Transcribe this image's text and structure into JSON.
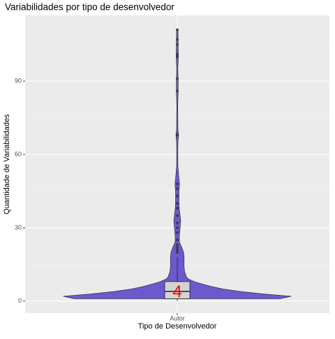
{
  "chart_data": {
    "type": "violin",
    "title": "Variabilidades por tipo de desenvolvedor",
    "x_label": "Tipo de Desenvolvedor",
    "y_label": "Quantidade de Variabilidades",
    "categories": [
      "Autor"
    ],
    "ylim": [
      -4.9,
      116.9
    ],
    "yticks": [
      0,
      30,
      60,
      90
    ],
    "y_minor": [
      15,
      45,
      75,
      105
    ],
    "grid": true,
    "color": "#6a5acd",
    "box_color": "#d3d3d3",
    "violin": {
      "y": [
        1,
        2,
        3,
        4,
        5,
        6,
        7,
        8,
        9,
        10,
        12,
        14,
        16,
        18,
        20,
        22,
        24,
        26,
        30,
        33,
        35,
        38,
        40,
        45,
        48,
        50,
        55,
        60,
        65,
        68,
        70,
        80,
        86,
        90,
        95,
        100,
        105,
        111
      ],
      "width": [
        0.9,
        1,
        0.75,
        0.55,
        0.4,
        0.3,
        0.22,
        0.15,
        0.1,
        0.08,
        0.065,
        0.06,
        0.06,
        0.06,
        0.055,
        0.04,
        0.02,
        0.018,
        0.025,
        0.03,
        0.025,
        0.018,
        0.015,
        0.015,
        0.02,
        0.015,
        0.006,
        0.005,
        0.006,
        0.012,
        0.006,
        0.004,
        0.008,
        0.008,
        0.005,
        0.01,
        0.008,
        0.006
      ]
    },
    "box": {
      "whisker_low": 0,
      "q1": 1,
      "median": 4,
      "q3": 8,
      "whisker_high": 18
    },
    "median_label": "4",
    "outliers": [
      20,
      21,
      22,
      23,
      25,
      28,
      30,
      32,
      35,
      38,
      40,
      43,
      46,
      48,
      68,
      86,
      91,
      100,
      101,
      105,
      107,
      111
    ]
  }
}
